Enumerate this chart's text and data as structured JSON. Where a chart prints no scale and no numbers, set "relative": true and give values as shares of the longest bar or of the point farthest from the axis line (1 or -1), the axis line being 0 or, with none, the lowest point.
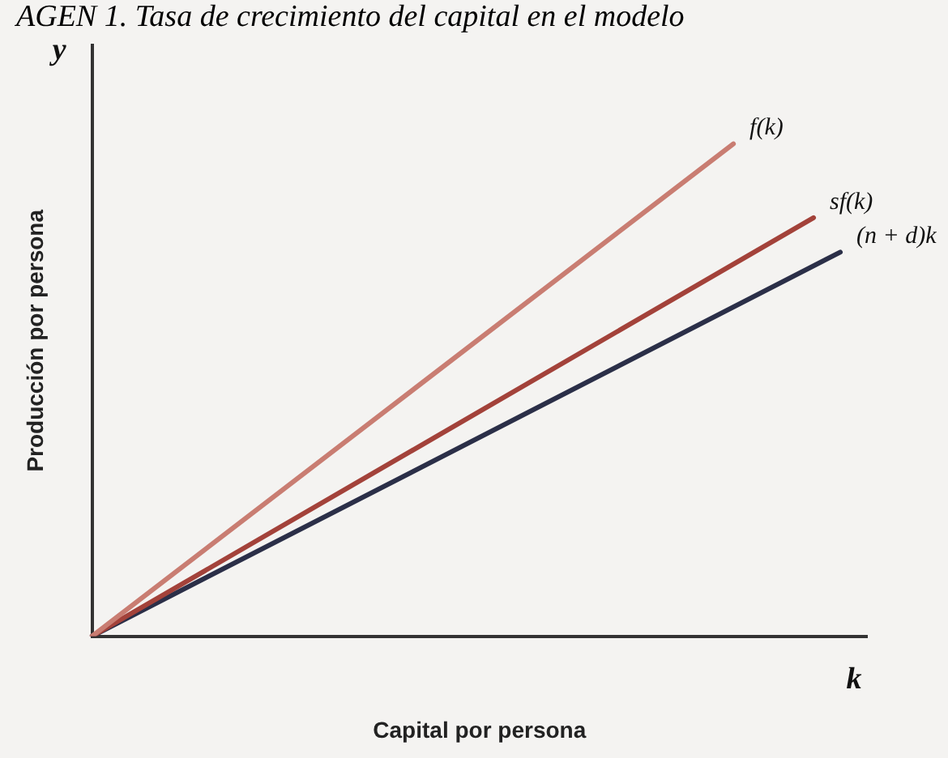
{
  "chart_data": {
    "type": "line",
    "title": "AGEN 1. Tasa de crecimiento del capital en el modelo",
    "xlabel": "Capital por persona",
    "ylabel": "Producción por persona",
    "relative": true,
    "legend": false,
    "marker": "none",
    "line_style": "solid",
    "annotations": [
      "y",
      "k"
    ],
    "categories": [
      null,
      null,
      null,
      null,
      null,
      null,
      null,
      null,
      null,
      null,
      null,
      null,
      null,
      null,
      null,
      null,
      null,
      null,
      null,
      null,
      null,
      null,
      null,
      null,
      null,
      null,
      null,
      null,
      null,
      null
    ],
    "series": [
      {
        "name": "f(k)",
        "color": "#c97d72",
        "values": [
          0,
          null,
          null,
          null,
          null,
          null,
          null,
          null,
          null,
          null,
          null,
          null,
          null,
          null,
          null,
          null,
          null,
          null,
          null,
          null,
          null,
          null,
          null,
          null,
          1,
          null,
          null,
          null,
          null,
          null
        ]
      },
      {
        "name": "sf(k)",
        "color": "#a3423a",
        "values": [
          0,
          null,
          null,
          null,
          null,
          null,
          null,
          null,
          null,
          null,
          null,
          null,
          null,
          null,
          null,
          null,
          null,
          null,
          null,
          null,
          null,
          null,
          null,
          null,
          null,
          null,
          null,
          0.85,
          null,
          null
        ]
      },
      {
        "name": "(n + d)k",
        "color": "#2b2f48",
        "values": [
          0,
          null,
          null,
          null,
          null,
          null,
          null,
          null,
          null,
          null,
          null,
          null,
          null,
          null,
          null,
          null,
          null,
          null,
          null,
          null,
          null,
          null,
          null,
          null,
          null,
          null,
          null,
          null,
          0.78,
          null
        ]
      }
    ]
  }
}
